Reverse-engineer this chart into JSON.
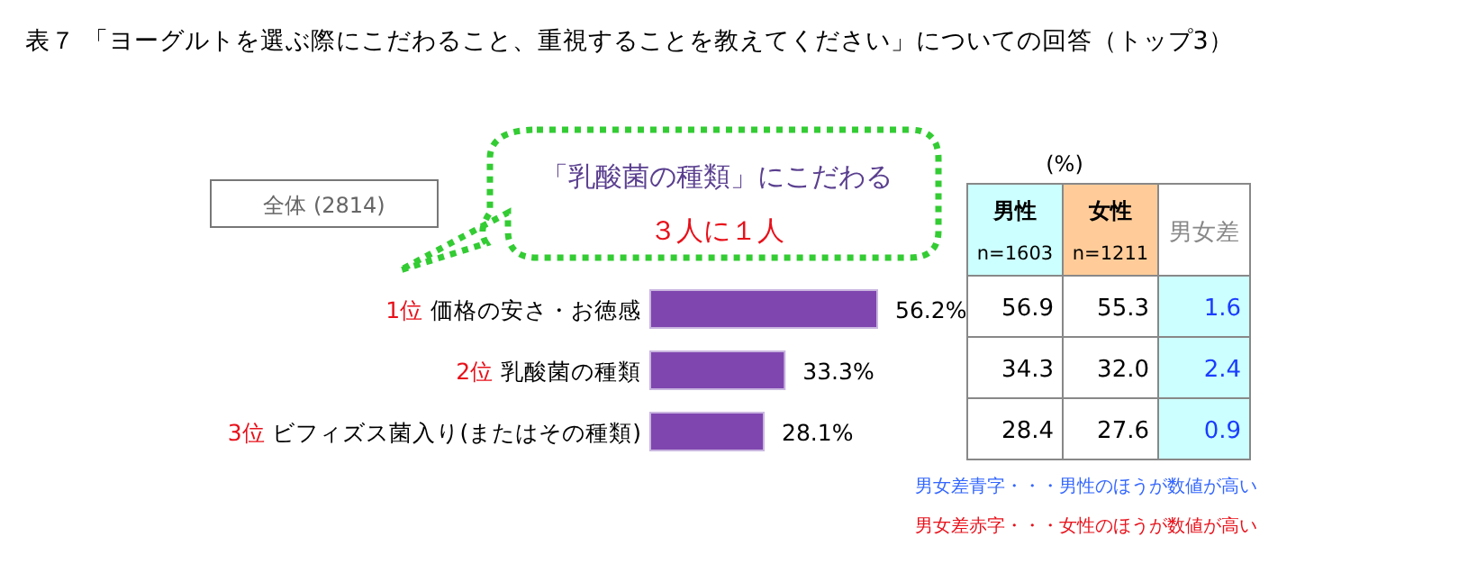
{
  "chart_data": [
    {
      "type": "bar",
      "orientation": "horizontal",
      "title": "表７ 「ヨーグルトを選ぶ際にこだわること、重視することを教えてください」についての回答（トップ3）",
      "categories": [
        "1位 価格の安さ・お徳感",
        "2位 乳酸菌の種類",
        "3位 ビフィズス菌入り(またはその種類)"
      ],
      "series": [
        {
          "name": "全体 (2814)",
          "color": "#8046b0",
          "values": [
            56.2,
            33.3,
            28.1
          ],
          "value_labels": [
            "56.2%",
            "33.3%",
            "28.1%"
          ]
        }
      ],
      "legend": "top left",
      "annotations": [
        "「乳酸菌の種類」にこだわる",
        "３人に１人"
      ]
    },
    {
      "type": "heatmap",
      "categories": [
        "男性 n=1603",
        "女性 n=1211",
        "男女差"
      ],
      "y_categories": [
        null,
        null,
        null
      ],
      "colors": [
        "#ccffff",
        "#ffcc99",
        "#ffffff"
      ],
      "cells": [
        [
          56.9,
          55.3,
          1.6
        ],
        [
          34.3,
          32.0,
          2.4
        ],
        [
          28.4,
          27.6,
          0.9
        ]
      ],
      "cell_labels": [
        [
          "56.9",
          "55.3",
          "1.6"
        ],
        [
          "34.3",
          "32.0",
          "2.4"
        ],
        [
          "28.4",
          "27.6",
          "0.9"
        ]
      ],
      "annotations": [
        "(%)",
        "男女差青字・・・男性のほうが数値が高い",
        "男女差赤字・・・女性のほうが数値が高い"
      ]
    }
  ]
}
